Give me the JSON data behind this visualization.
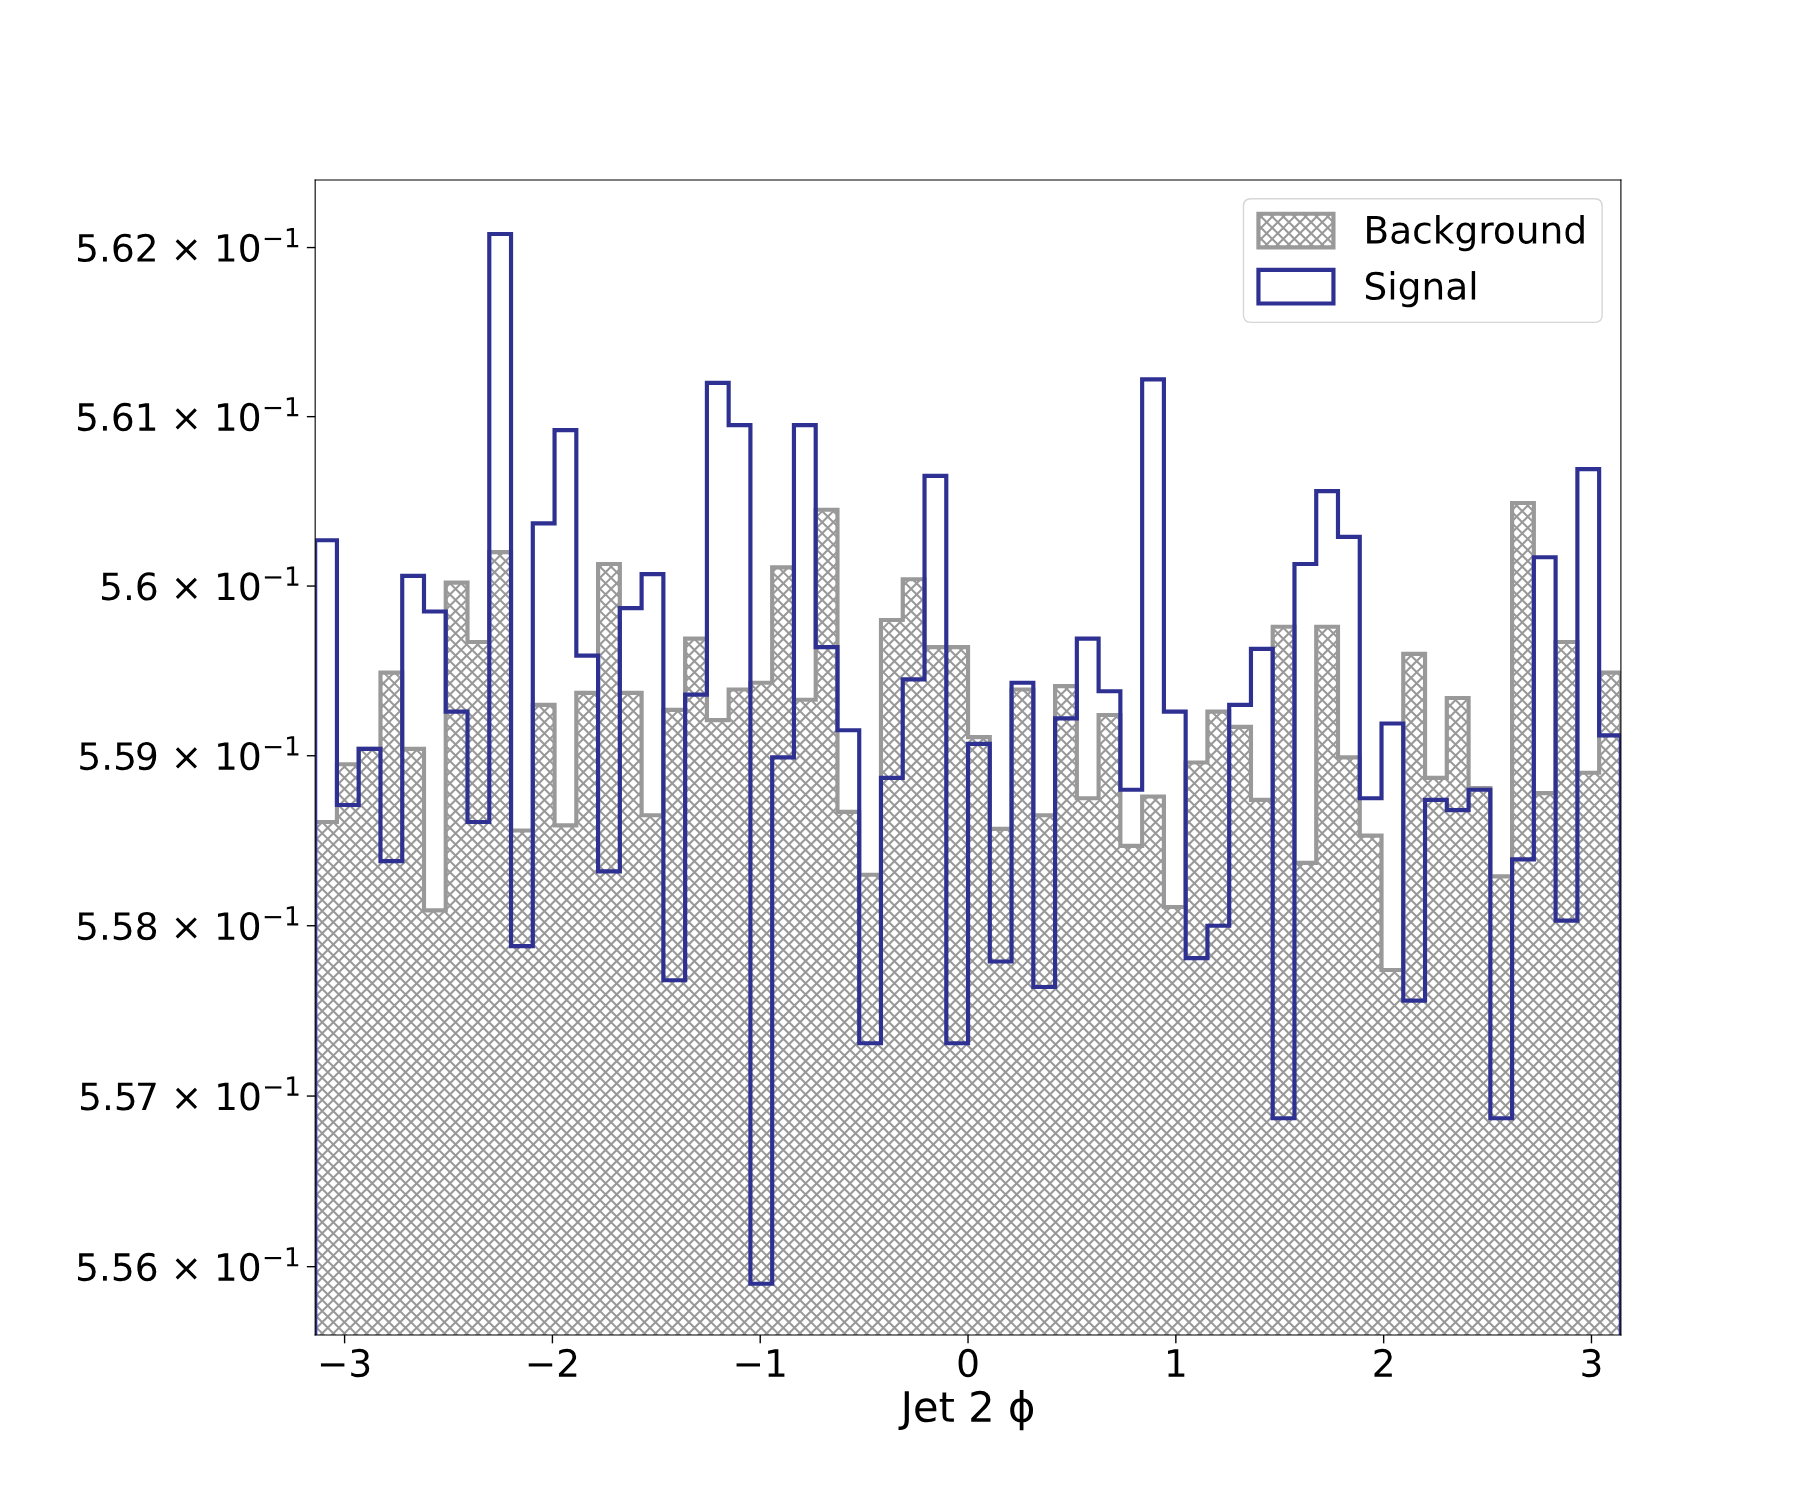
{
  "chart_data": {
    "type": "histogram",
    "xlabel": "Jet 2 ϕ",
    "bins": [
      -3.1416,
      -3.0369,
      -2.9322,
      -2.8274,
      -2.7227,
      -2.618,
      -2.5133,
      -2.4086,
      -2.3038,
      -2.1991,
      -2.0944,
      -1.9897,
      -1.885,
      -1.7802,
      -1.6755,
      -1.5708,
      -1.4661,
      -1.3614,
      -1.2566,
      -1.1519,
      -1.0472,
      -0.9425,
      -0.8378,
      -0.733,
      -0.6283,
      -0.5236,
      -0.4189,
      -0.3142,
      -0.2094,
      -0.1047,
      0,
      0.1047,
      0.2094,
      0.3142,
      0.4189,
      0.5236,
      0.6283,
      0.733,
      0.8378,
      0.9425,
      1.0472,
      1.1519,
      1.2566,
      1.3614,
      1.4661,
      1.5708,
      1.6755,
      1.7802,
      1.885,
      1.9897,
      2.0944,
      2.1991,
      2.3038,
      2.4086,
      2.5133,
      2.618,
      2.7227,
      2.8274,
      2.9322,
      3.0369,
      3.1416
    ],
    "series": [
      {
        "name": "Background",
        "color": "#999999",
        "values": [
          0.55861,
          0.55895,
          0.55904,
          0.55949,
          0.55904,
          0.55809,
          0.56002,
          0.55967,
          0.5602,
          0.55856,
          0.5593,
          0.55859,
          0.55937,
          0.56013,
          0.55937,
          0.55865,
          0.55927,
          0.55969,
          0.55921,
          0.55939,
          0.55943,
          0.56011,
          0.55933,
          0.56045,
          0.55867,
          0.5583,
          0.5598,
          0.56004,
          0.55964,
          0.55964,
          0.55911,
          0.55857,
          0.55939,
          0.55865,
          0.55941,
          0.55875,
          0.55924,
          0.55847,
          0.55876,
          0.55811,
          0.55896,
          0.55926,
          0.55917,
          0.55874,
          0.55976,
          0.55837,
          0.55976,
          0.55899,
          0.55853,
          0.55774,
          0.5596,
          0.55887,
          0.55934,
          0.55881,
          0.55829,
          0.56049,
          0.55878,
          0.55967,
          0.5589,
          0.55949
        ]
      },
      {
        "name": "Signal",
        "color": "#2e3192",
        "values": [
          0.56027,
          0.55871,
          0.55904,
          0.55838,
          0.56006,
          0.55985,
          0.55926,
          0.55861,
          0.56208,
          0.55788,
          0.56037,
          0.56092,
          0.55959,
          0.55832,
          0.55987,
          0.56007,
          0.55768,
          0.55936,
          0.5612,
          0.56095,
          0.5559,
          0.55899,
          0.56095,
          0.55964,
          0.55915,
          0.55731,
          0.55887,
          0.55945,
          0.56065,
          0.55731,
          0.55907,
          0.55779,
          0.55943,
          0.55764,
          0.55922,
          0.55969,
          0.55938,
          0.5588,
          0.56122,
          0.55926,
          0.55781,
          0.558,
          0.5593,
          0.55963,
          0.55687,
          0.56013,
          0.56056,
          0.56029,
          0.55875,
          0.55919,
          0.55756,
          0.55874,
          0.55868,
          0.5588,
          0.55687,
          0.55839,
          0.56017,
          0.55803,
          0.56069,
          0.55912
        ]
      }
    ],
    "log": "y",
    "xlim": [
      -3.1416,
      3.1416
    ],
    "xticks": [
      {
        "value": -3,
        "label": "−3"
      },
      {
        "value": -2,
        "label": "−2"
      },
      {
        "value": -1,
        "label": "−1"
      },
      0,
      1,
      2,
      3
    ],
    "ylim": [
      0.5556,
      0.5624
    ],
    "yticks": [
      {
        "value": 0.556,
        "label": "5.56 × 10$^{−1}$"
      },
      {
        "value": 0.557,
        "label": "5.57 × 10$^{−1}$"
      },
      {
        "value": 0.558,
        "label": "5.58 × 10$^{−1}$"
      },
      {
        "value": 0.559,
        "label": "5.59 × 10$^{−1}$"
      },
      {
        "value": 0.56,
        "label": "5.6 × 10$^{−1}$"
      },
      {
        "value": 0.561,
        "label": "5.61 × 10$^{−1}$"
      },
      {
        "value": 0.562,
        "label": "5.62 × 10$^{−1}$"
      }
    ],
    "grid": false,
    "legend": "top right"
  }
}
